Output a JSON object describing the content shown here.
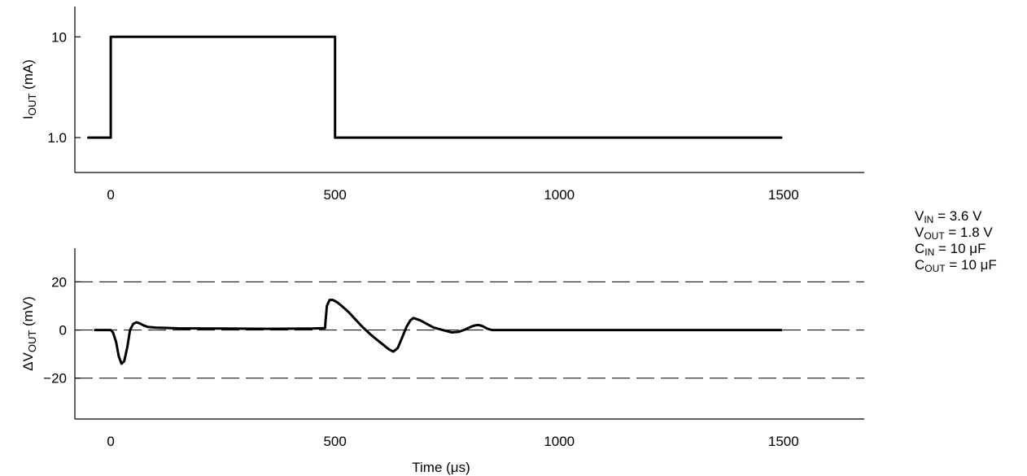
{
  "chart_data": [
    {
      "type": "line",
      "y_scale": "log",
      "xlim": [
        -80,
        1680
      ],
      "ylim": [
        0.45,
        20
      ],
      "x_ticks": [
        "0",
        "500",
        "1000",
        "1500"
      ],
      "y_ticks": [
        "10",
        "1.0"
      ],
      "ylabel": {
        "base": "I",
        "sub": "OUT",
        "rest": " (mA)"
      },
      "xlabel": "",
      "series": [
        {
          "x": [
            -50,
            0,
            0,
            500,
            500,
            1495
          ],
          "y": [
            1.0,
            1.0,
            10,
            10,
            1.0,
            1.0
          ]
        }
      ]
    },
    {
      "type": "line",
      "xlim": [
        -80,
        1680
      ],
      "ylim": [
        -37,
        34
      ],
      "x_ticks": [
        "0",
        "500",
        "1000",
        "1500"
      ],
      "y_ticks": [
        "20",
        "0",
        "−20"
      ],
      "reference_lines_y": [
        20,
        0,
        -20
      ],
      "ylabel": {
        "base": "ΔV",
        "sub": "OUT",
        "rest": " (mV)"
      },
      "xlabel": "Time (μs)",
      "series": [
        {
          "x": [
            -35,
            0,
            5,
            12,
            18,
            24,
            30,
            37,
            43,
            50,
            57,
            64,
            72,
            82,
            100,
            150,
            250,
            350,
            450,
            478,
            479,
            482,
            488,
            495,
            505,
            515,
            530,
            545,
            560,
            580,
            600,
            620,
            630,
            640,
            650,
            660,
            668,
            675,
            690,
            705,
            720,
            740,
            760,
            775,
            790,
            805,
            815,
            822,
            830,
            840,
            850,
            870,
            950,
            1100,
            1300,
            1495
          ],
          "y": [
            0,
            0,
            -1,
            -5,
            -11,
            -14,
            -13,
            -7,
            0,
            2.5,
            3.2,
            2.8,
            2,
            1.3,
            1.0,
            0.7,
            0.6,
            0.5,
            0.6,
            0.8,
            4,
            10,
            12.5,
            12.5,
            11.5,
            10,
            7.5,
            4.5,
            1.5,
            -2,
            -5,
            -8,
            -9,
            -7.5,
            -3,
            1.5,
            4,
            5,
            4,
            2.5,
            1,
            0,
            -1,
            -0.8,
            0.2,
            1.5,
            2,
            2,
            1.5,
            0.5,
            0,
            0,
            0,
            0,
            0,
            0
          ]
        }
      ]
    }
  ],
  "conditions": [
    {
      "base": "V",
      "sub": "IN",
      "rest": " = 3.6 V"
    },
    {
      "base": "V",
      "sub": "OUT",
      "rest": " = 1.8 V"
    },
    {
      "base": "C",
      "sub": "IN",
      "rest": " = 10 μF"
    },
    {
      "base": "C",
      "sub": "OUT",
      "rest": " = 10 μF"
    }
  ]
}
